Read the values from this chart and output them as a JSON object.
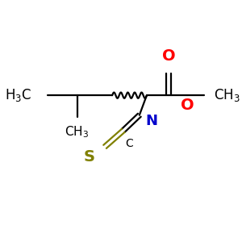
{
  "bg_color": "#ffffff",
  "atom_colors": {
    "O": "#ff0000",
    "N": "#0000cc",
    "S": "#808000",
    "C": "#000000"
  },
  "figsize": [
    3.0,
    3.0
  ],
  "dpi": 100
}
